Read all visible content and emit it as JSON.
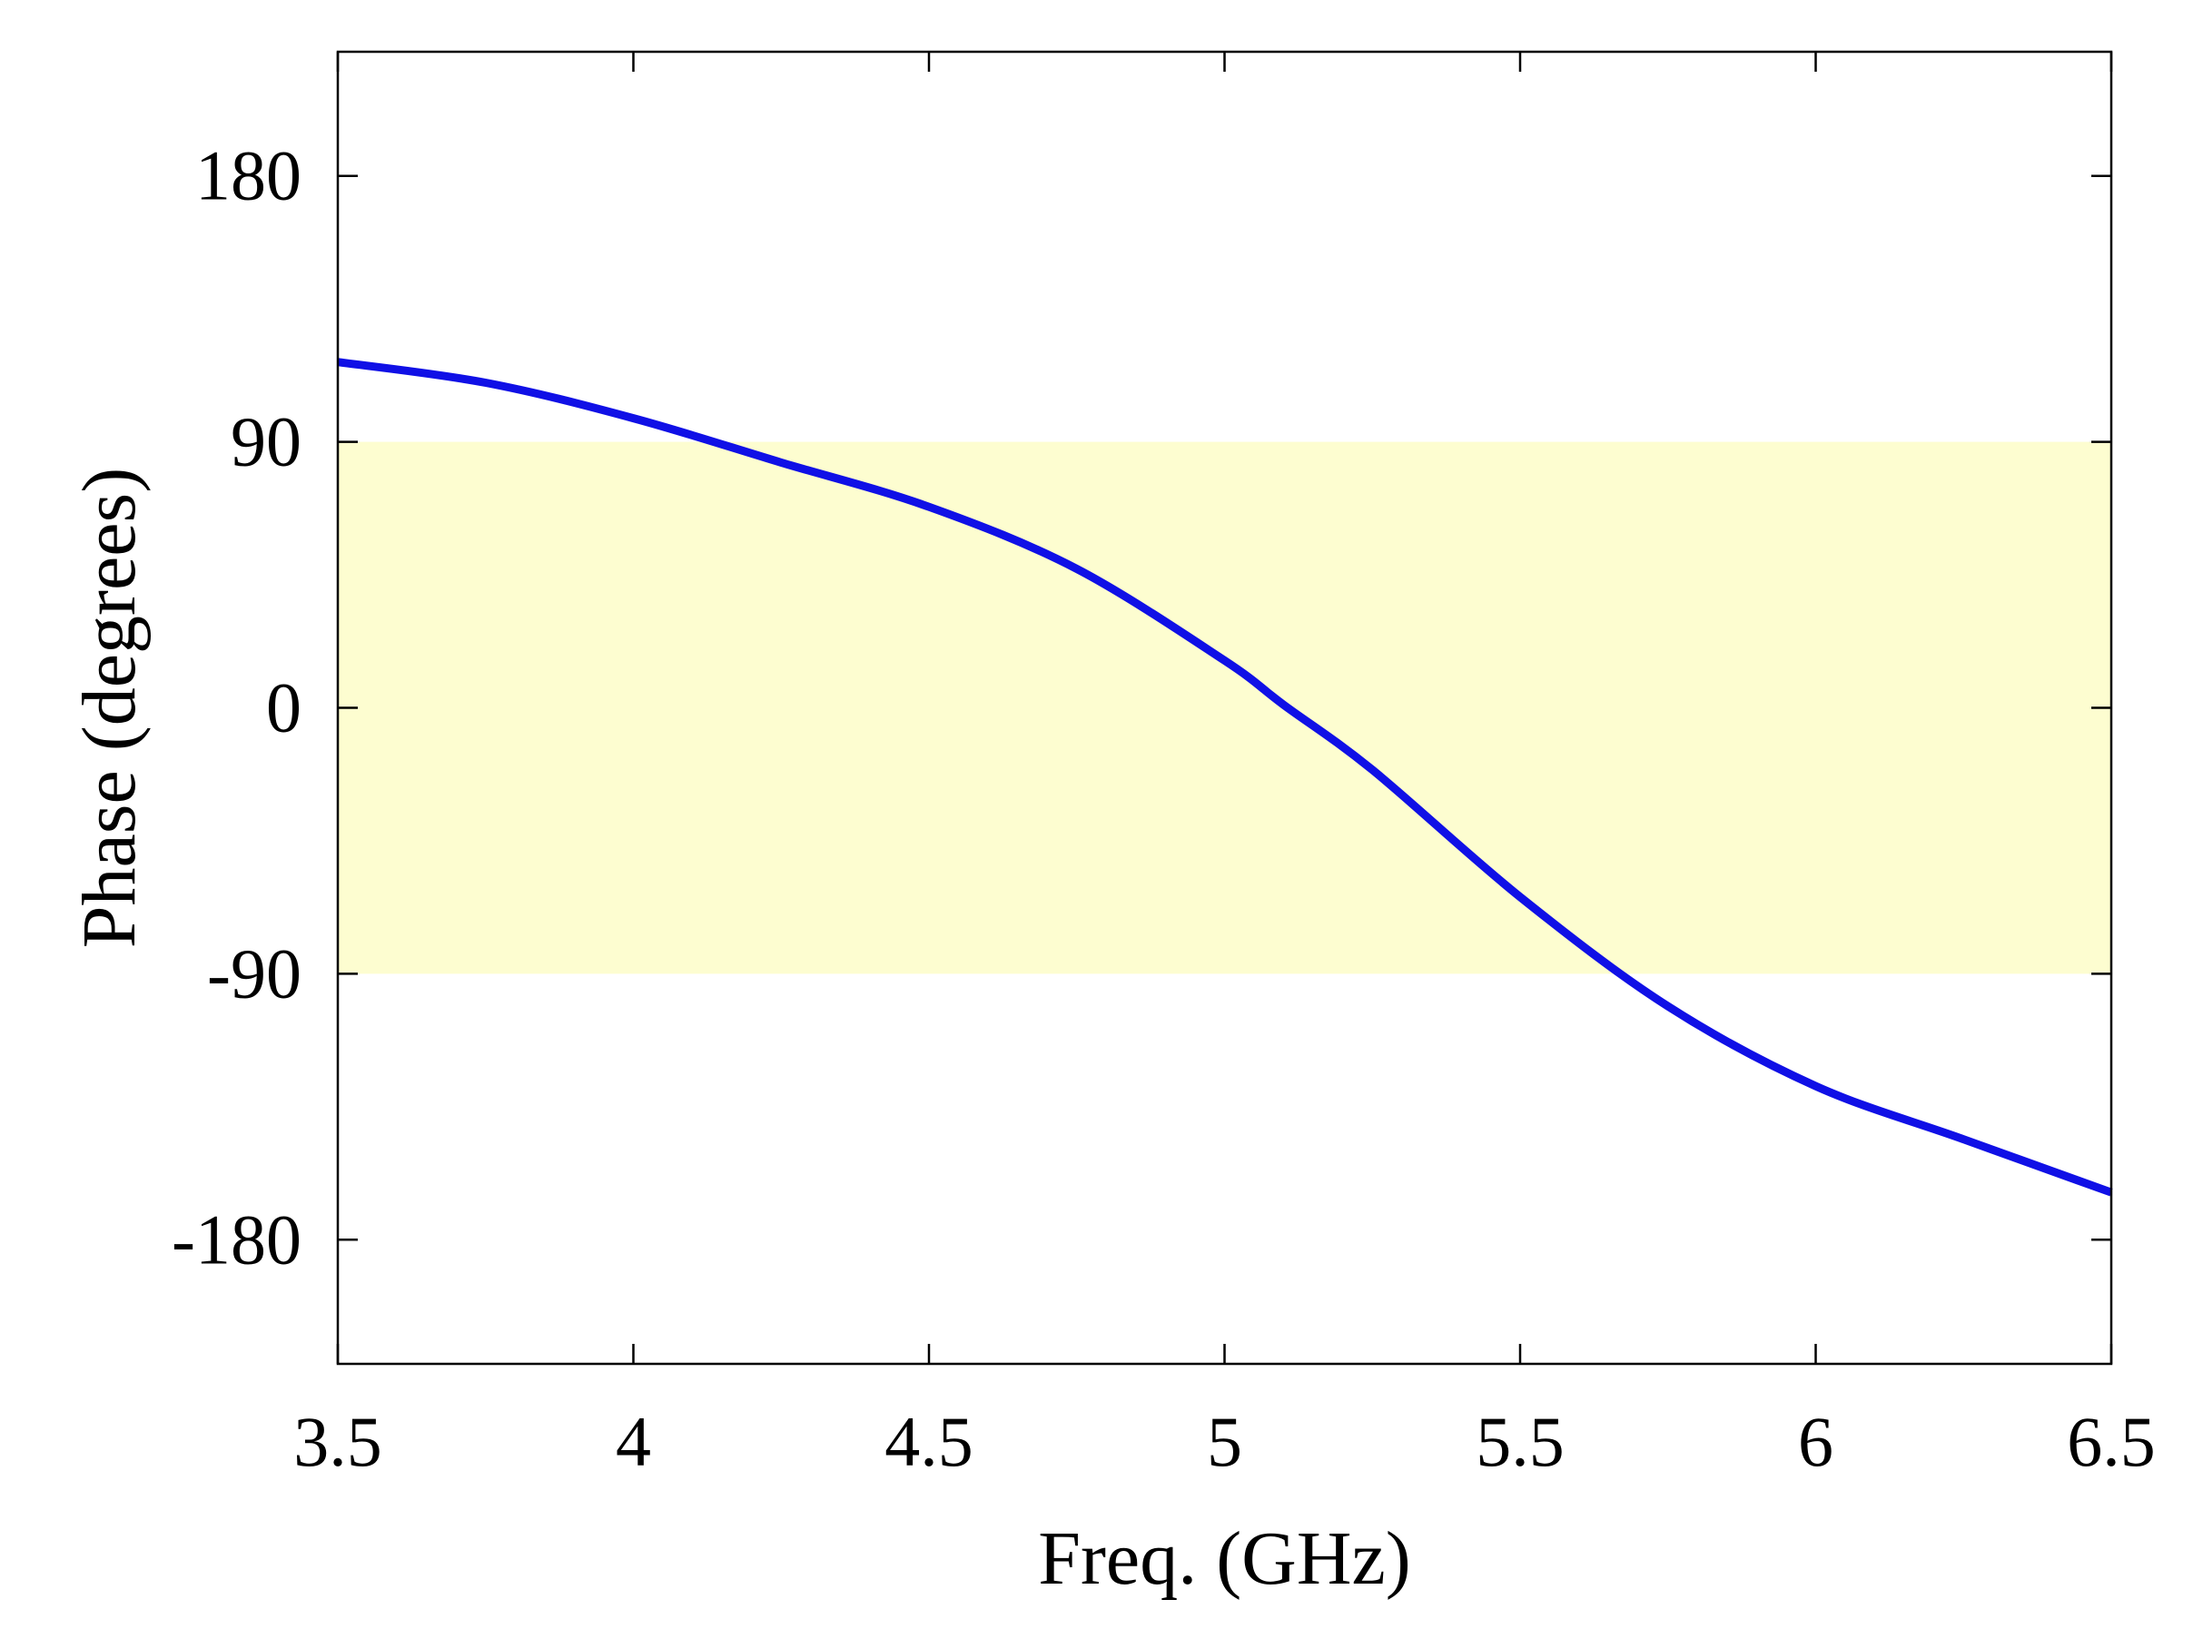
{
  "chart_data": {
    "type": "line",
    "title": "",
    "xlabel": "Freq. (GHz)",
    "ylabel": "Phase (degrees)",
    "xlim": [
      3.5,
      6.5
    ],
    "ylim": [
      -222,
      222
    ],
    "xticks": [
      3.5,
      4,
      4.5,
      5,
      5.5,
      6,
      6.5
    ],
    "xtick_labels": [
      "3.5",
      "4",
      "4.5",
      "5",
      "5.5",
      "6",
      "6.5"
    ],
    "yticks": [
      180,
      90,
      0,
      -90,
      -180
    ],
    "ytick_labels": [
      "180",
      "90",
      "0",
      "-90",
      "-180"
    ],
    "grid": false,
    "band": {
      "y0": -90,
      "y1": 90,
      "color": "#fdfdd0"
    },
    "series": [
      {
        "name": "Phase",
        "color": "#1010e6",
        "x": [
          3.5,
          3.75,
          4.0,
          4.25,
          4.5,
          4.75,
          5.0,
          5.1,
          5.25,
          5.5,
          5.75,
          6.0,
          6.25,
          6.5
        ],
        "y": [
          117,
          110,
          98,
          83,
          68,
          47,
          16,
          1,
          -21,
          -64,
          -101,
          -128,
          -146,
          -164
        ]
      }
    ]
  }
}
